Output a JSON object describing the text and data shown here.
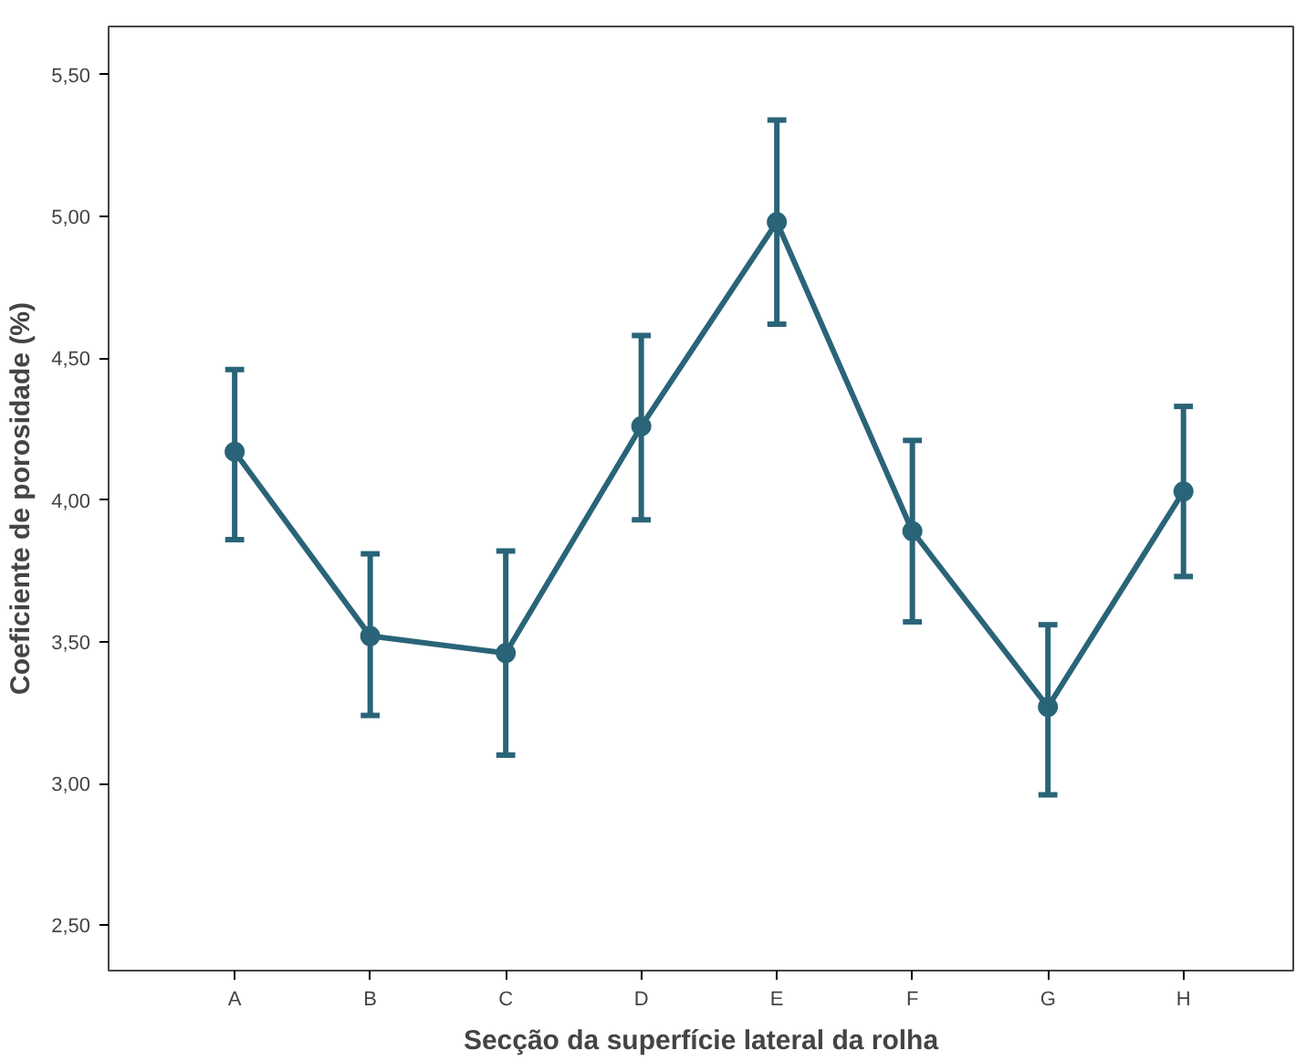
{
  "chart_data": {
    "type": "line",
    "xlabel": "Secção da superfície lateral da rolha",
    "ylabel": "Coeficiente de porosidade (%)",
    "categories": [
      "A",
      "B",
      "C",
      "D",
      "E",
      "F",
      "G",
      "H"
    ],
    "series": [
      {
        "color": "#2a6478",
        "values": [
          4.17,
          3.52,
          3.46,
          4.26,
          4.98,
          3.89,
          3.27,
          4.03
        ],
        "errors": [
          [
            3.86,
            4.46
          ],
          [
            3.24,
            3.81
          ],
          [
            3.1,
            3.82
          ],
          [
            3.93,
            4.58
          ],
          [
            4.62,
            5.34
          ],
          [
            3.57,
            4.21
          ],
          [
            2.96,
            3.56
          ],
          [
            3.73,
            4.33
          ]
        ]
      }
    ],
    "ylim": [
      2.34,
      5.67
    ],
    "yticks": [
      {
        "value": 2.5,
        "label": "2,50"
      },
      {
        "value": 3.0,
        "label": "3,00"
      },
      {
        "value": 3.5,
        "label": "3,50"
      },
      {
        "value": 4.0,
        "label": "4,00"
      },
      {
        "value": 4.5,
        "label": "4,50"
      },
      {
        "value": 5.0,
        "label": "5,00"
      },
      {
        "value": 5.5,
        "label": "5,50"
      }
    ],
    "marker": "circle",
    "line_style": "solid"
  }
}
